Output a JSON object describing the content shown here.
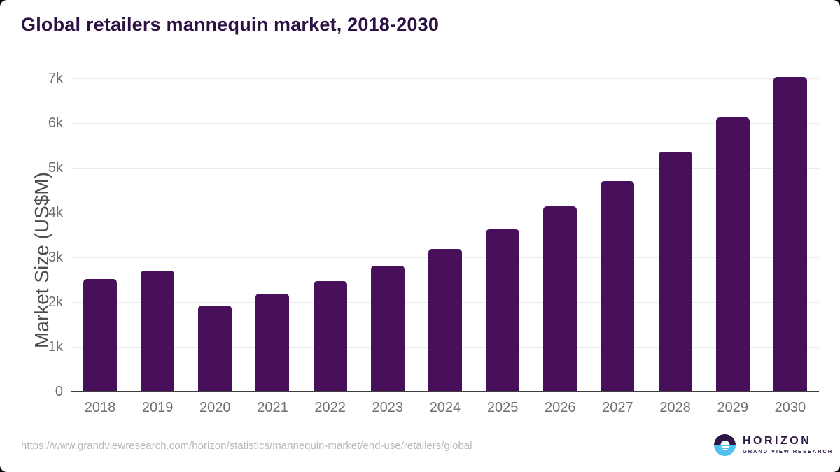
{
  "title": "Global retailers mannequin market, 2018-2030",
  "chart_data": {
    "type": "bar",
    "title": "Global retailers mannequin market, 2018-2030",
    "categories": [
      "2018",
      "2019",
      "2020",
      "2021",
      "2022",
      "2023",
      "2024",
      "2025",
      "2026",
      "2027",
      "2028",
      "2029",
      "2030"
    ],
    "values": [
      2520,
      2700,
      1920,
      2190,
      2470,
      2810,
      3190,
      3630,
      4140,
      4700,
      5360,
      6130,
      7030
    ],
    "xlabel": "",
    "ylabel": "Market Size (US$M)",
    "ylim": [
      0,
      7000
    ],
    "yticks": [
      0,
      1000,
      2000,
      3000,
      4000,
      5000,
      6000,
      7000
    ],
    "ytick_labels": [
      "0",
      "1k",
      "2k",
      "3k",
      "4k",
      "5k",
      "6k",
      "7k"
    ],
    "grid": "horizontal gridlines at each 1k, light gray",
    "legend": "none",
    "bar_color": "#48105a"
  },
  "footer": {
    "source_url": "https://www.grandviewresearch.com/horizon/statistics/mannequin-market/end-use/retailers/global",
    "logo": {
      "brand": "HORIZON",
      "tagline": "GRAND VIEW RESEARCH"
    }
  },
  "colors": {
    "background": "#ffffff",
    "title": "#2c1243",
    "bar": "#48105a",
    "axis_line": "#3f3f3f",
    "gridline": "#ebebeb",
    "tick_label": "#6f6f6f",
    "axis_label": "#4d4d4d",
    "url": "#b9b9b9",
    "logo_purple": "#2e1745",
    "logo_blue": "#50c2ee"
  }
}
